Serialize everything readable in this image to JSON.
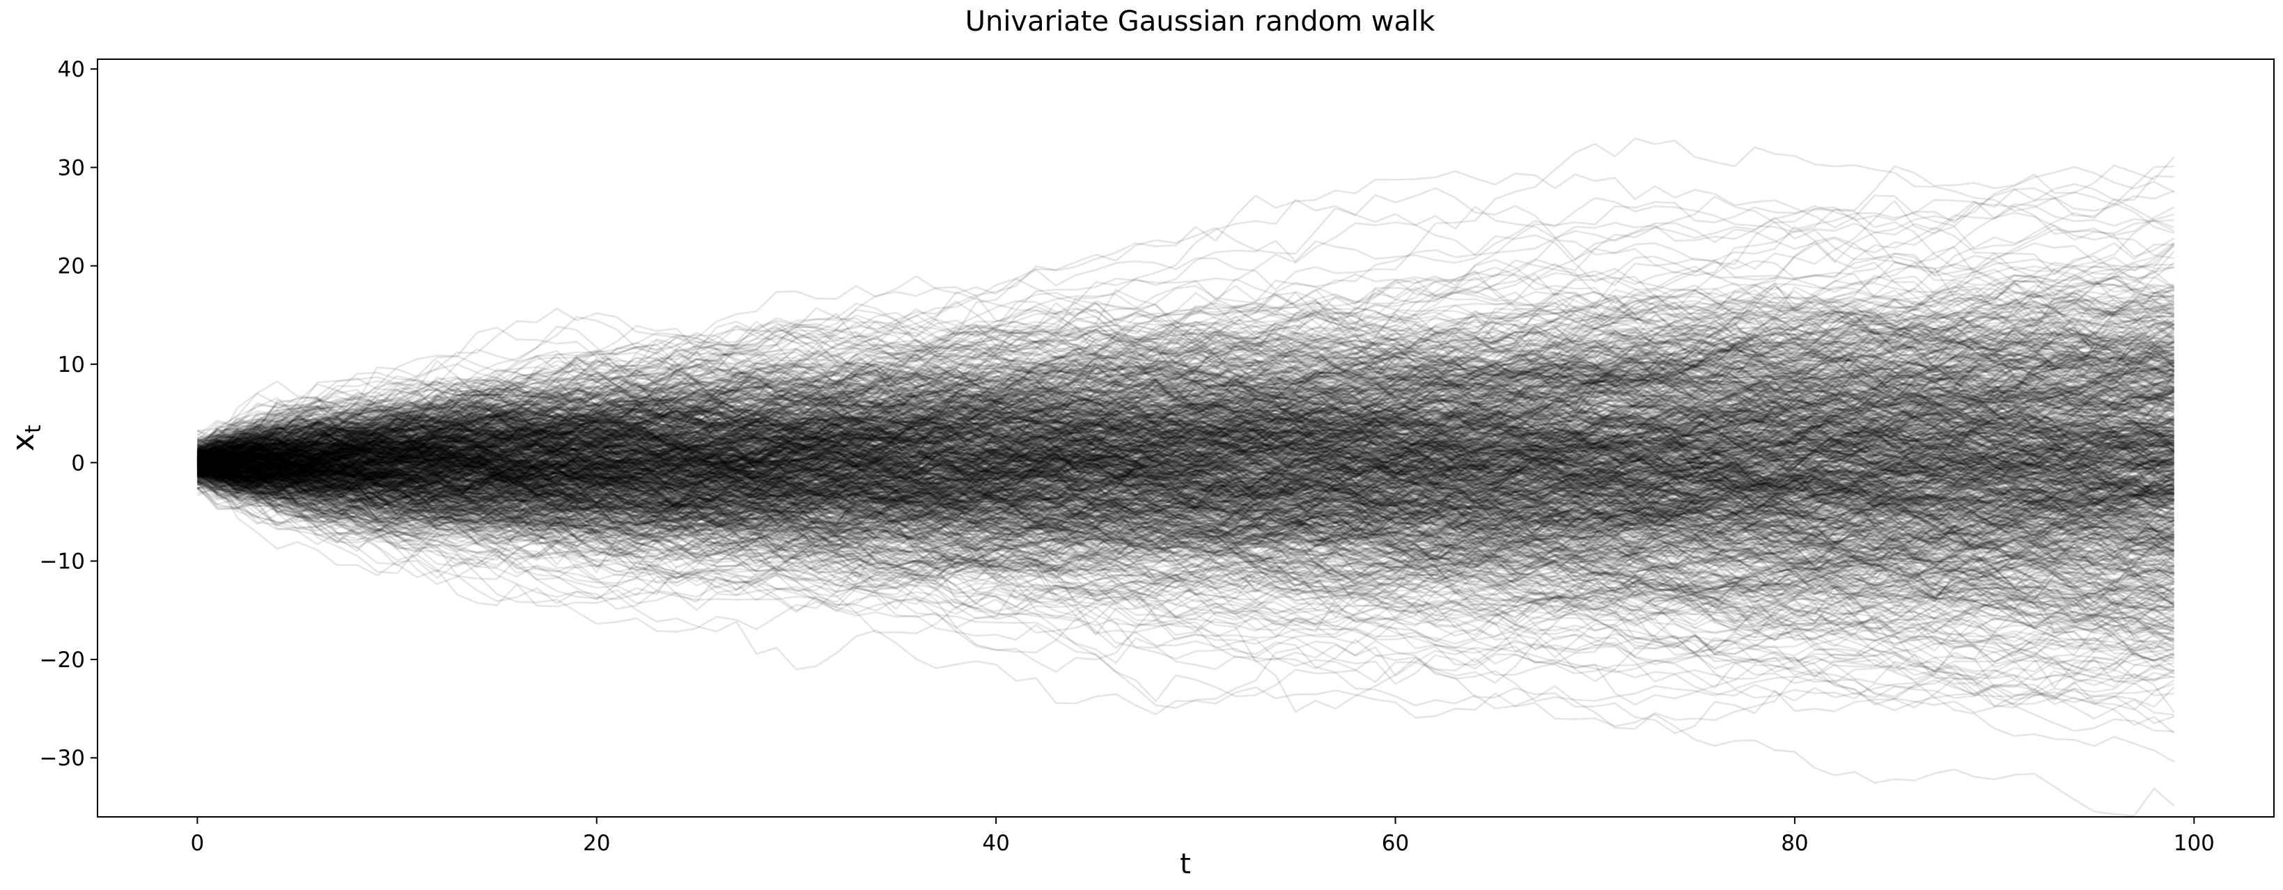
{
  "chart_data": {
    "type": "line",
    "title": "Univariate Gaussian random walk",
    "xlabel": "t",
    "ylabel": "x_t",
    "xlim": [
      -5,
      104
    ],
    "ylim": [
      -36,
      41
    ],
    "x": [
      0,
      99
    ],
    "xticks": [
      0,
      20,
      40,
      60,
      80,
      100
    ],
    "yticks": [
      -30,
      -20,
      -10,
      0,
      10,
      20,
      30,
      40
    ],
    "xtick_labels": [
      "0",
      "20",
      "40",
      "60",
      "80",
      "100"
    ],
    "ytick_labels": [
      "−30",
      "−20",
      "−10",
      "0",
      "10",
      "20",
      "30",
      "40"
    ],
    "series_count": 1000,
    "series_color": "#000000",
    "series_opacity": 0.1,
    "grid": false,
    "legend": "none",
    "envelope": {
      "t": [
        0,
        20,
        40,
        60,
        80,
        99
      ],
      "max": [
        2,
        14,
        24,
        24,
        30,
        37
      ],
      "min": [
        -2,
        -15,
        -22,
        -28,
        -31,
        -33
      ]
    },
    "endpoint_range": [
      -32.5,
      36
    ]
  }
}
